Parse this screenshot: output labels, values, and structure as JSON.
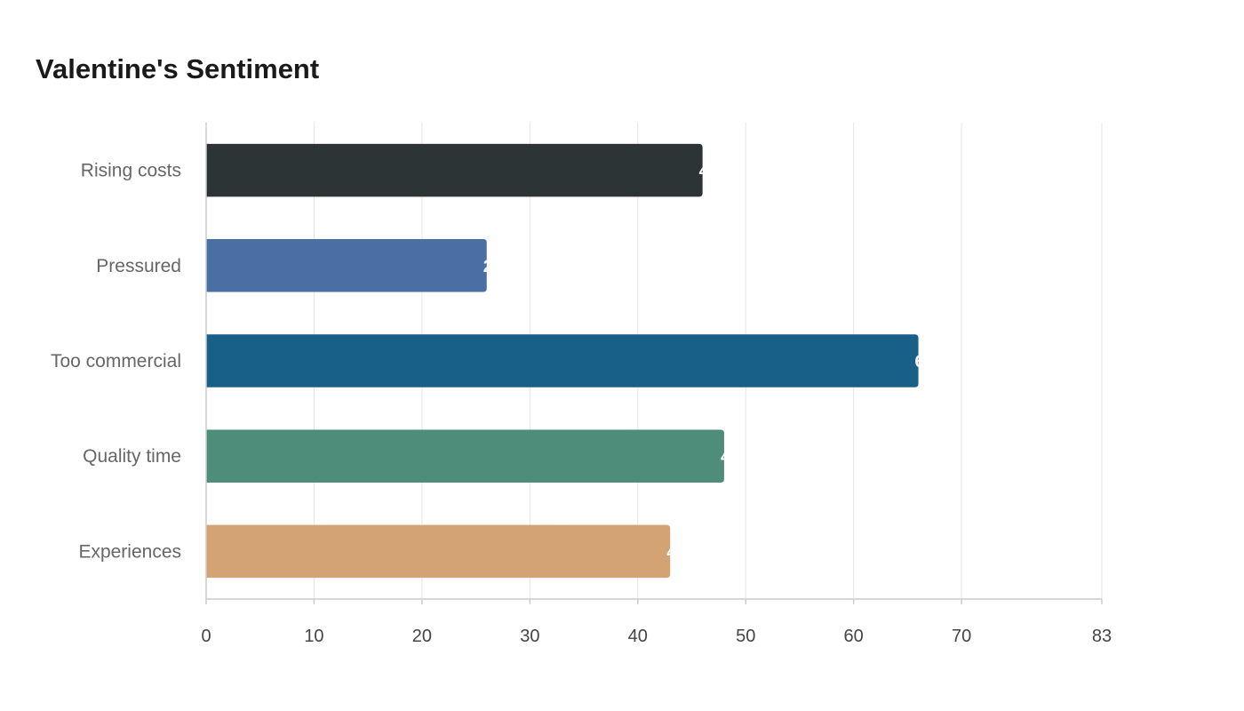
{
  "chart_data": {
    "type": "bar",
    "orientation": "horizontal",
    "title": "Valentine's Sentiment",
    "xlabel": "",
    "ylabel": "",
    "categories": [
      "Rising costs",
      "Pressured",
      "Too commercial",
      "Quality time",
      "Experiences"
    ],
    "values": [
      46,
      26,
      66,
      48,
      43
    ],
    "colors": [
      "#2d3436",
      "#4a6fa5",
      "#186087",
      "#4f8d7b",
      "#d4a373"
    ],
    "xlim": [
      0,
      83
    ],
    "xticks": [
      0,
      10,
      20,
      30,
      40,
      50,
      60,
      70,
      83
    ],
    "grid": true,
    "legend": "none"
  }
}
